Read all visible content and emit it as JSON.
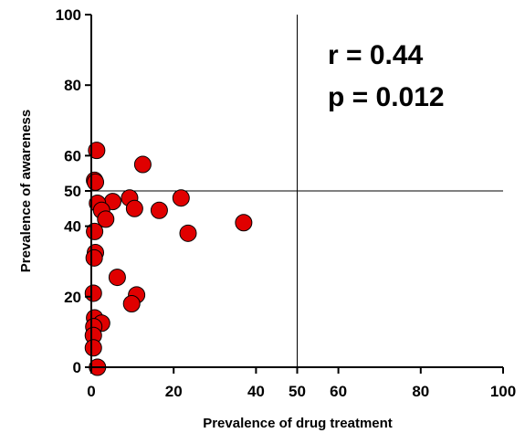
{
  "chart_data": {
    "type": "scatter",
    "title": "",
    "xlabel": "Prevalence of drug treatment",
    "ylabel": "Prevalence of awareness",
    "xlim": [
      0,
      100
    ],
    "ylim": [
      0,
      100
    ],
    "x_ticks": [
      0,
      20,
      40,
      50,
      60,
      80,
      100
    ],
    "y_ticks": [
      0,
      20,
      40,
      50,
      60,
      80,
      100
    ],
    "reference_lines": {
      "x": 50,
      "y": 50
    },
    "grid": false,
    "point_color": "#e00000",
    "annotations": [
      "r = 0.44",
      "p = 0.012"
    ],
    "series": [
      {
        "x": [
          1.3,
          0.8,
          1.0,
          12.5,
          21.8,
          9.3,
          5.2,
          1.5,
          2.5,
          10.5,
          16.5,
          3.5,
          37.0,
          23.5,
          0.8,
          1.0,
          0.7,
          6.3,
          0.5,
          11.0,
          9.8,
          0.8,
          2.5,
          0.6,
          0.5,
          0.5,
          1.5
        ],
        "y": [
          61.5,
          53.0,
          52.5,
          57.5,
          48.0,
          48.0,
          47.0,
          46.5,
          44.5,
          45.0,
          44.5,
          42.0,
          41.0,
          38.0,
          38.5,
          32.5,
          31.0,
          25.5,
          21.0,
          20.5,
          18.0,
          14.0,
          12.5,
          11.5,
          9.0,
          5.5,
          0.0
        ]
      }
    ]
  }
}
